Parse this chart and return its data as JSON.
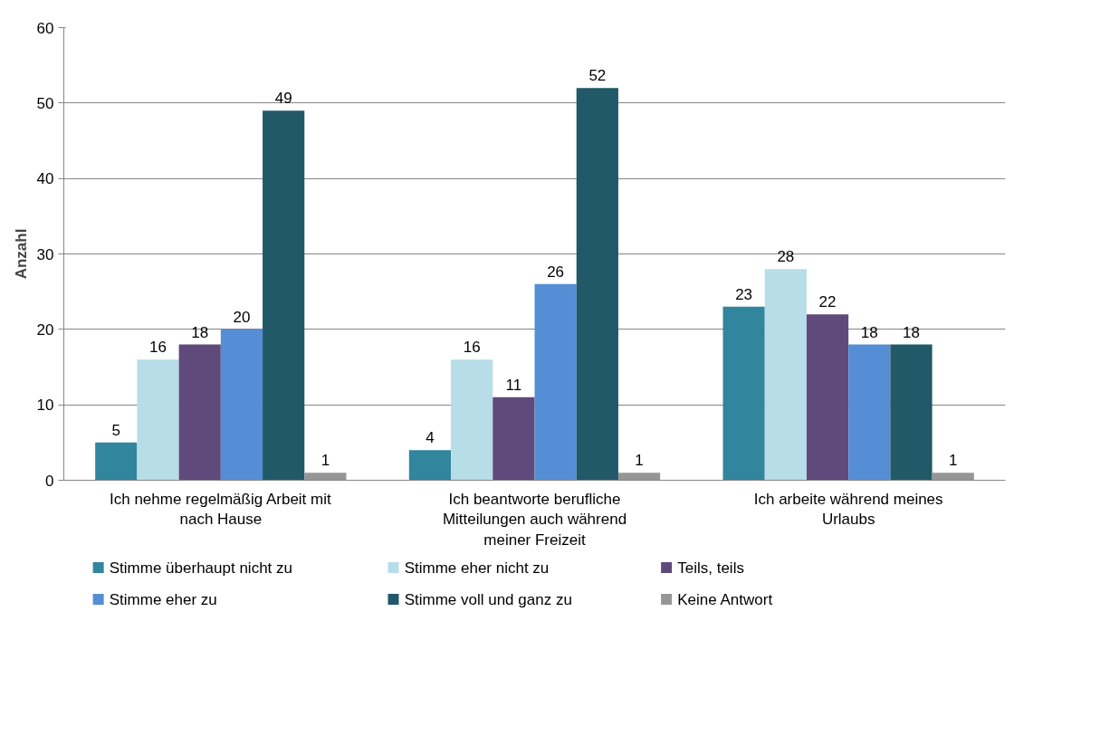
{
  "chart_data": {
    "type": "bar",
    "ylabel": "Anzahl",
    "categories": [
      "Ich nehme regelmäßig Arbeit mit nach Hause",
      "Ich beantworte berufliche Mitteilungen auch während meiner Freizeit",
      "Ich arbeite während meines Urlaubs"
    ],
    "series": [
      {
        "name": "Stimme überhaupt nicht zu",
        "color": "#31859c",
        "values": [
          5,
          4,
          23
        ]
      },
      {
        "name": "Stimme eher nicht zu",
        "color": "#b7dde8",
        "values": [
          16,
          16,
          28
        ]
      },
      {
        "name": "Teils, teils",
        "color": "#604a7b",
        "values": [
          18,
          11,
          22
        ]
      },
      {
        "name": "Stimme eher zu",
        "color": "#558ed5",
        "values": [
          20,
          26,
          18
        ]
      },
      {
        "name": "Stimme voll und ganz zu",
        "color": "#215968",
        "values": [
          49,
          52,
          18
        ]
      },
      {
        "name": "Keine Antwort",
        "color": "#969696",
        "values": [
          1,
          1,
          1
        ]
      }
    ],
    "ylim": [
      0,
      60
    ],
    "yticks": [
      0,
      10,
      20,
      30,
      40,
      50,
      60
    ],
    "grid": "y",
    "data_labels": true,
    "legend": "bottom"
  }
}
